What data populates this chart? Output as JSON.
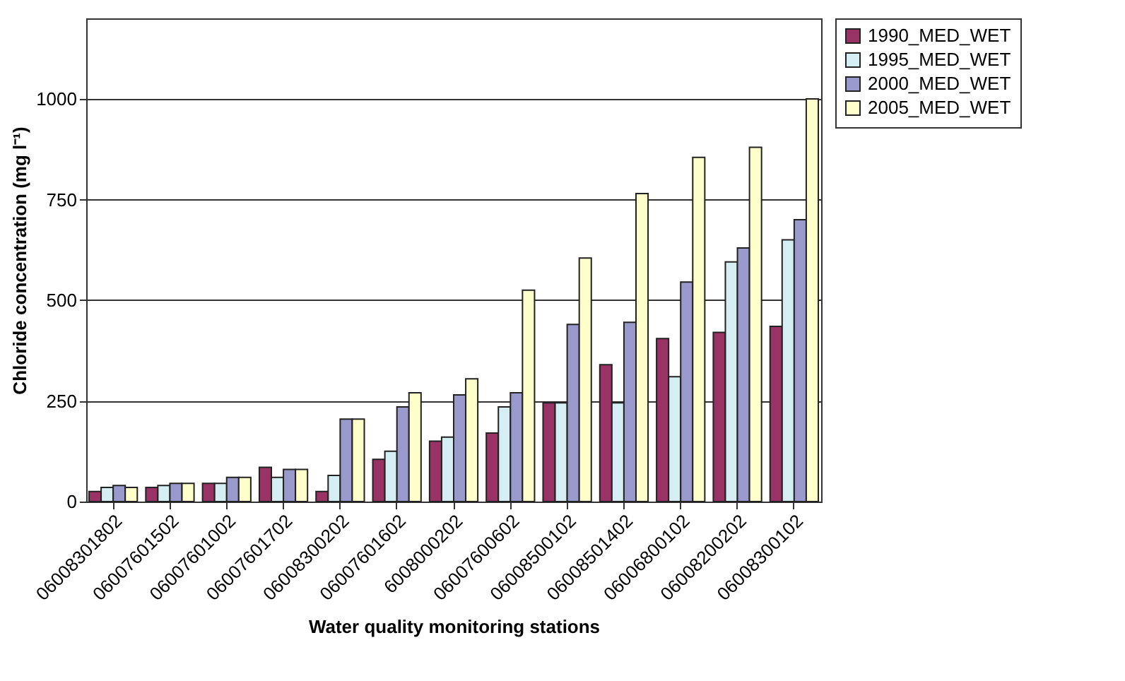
{
  "chart_data": {
    "type": "bar",
    "xlabel": "Water quality monitoring stations",
    "ylabel": "Chloride concentration (mg l⁻¹)",
    "categories": [
      "06008301802",
      "06007601502",
      "06007601002",
      "06007601702",
      "06008300202",
      "06007601602",
      "6008000202",
      "06007600602",
      "06008500102",
      "06008501402",
      "06006800102",
      "06008200202",
      "06008300102"
    ],
    "series": [
      {
        "name": "1990_MED_WET",
        "color": "#993366",
        "values": [
          25,
          35,
          45,
          85,
          25,
          105,
          150,
          170,
          245,
          340,
          405,
          420,
          435
        ]
      },
      {
        "name": "1995_MED_WET",
        "color": "#d4eef4",
        "values": [
          35,
          40,
          45,
          60,
          65,
          125,
          160,
          235,
          245,
          245,
          310,
          595,
          650
        ]
      },
      {
        "name": "2000_MED_WET",
        "color": "#9999cc",
        "values": [
          40,
          45,
          60,
          80,
          205,
          235,
          265,
          270,
          440,
          445,
          545,
          630,
          700
        ]
      },
      {
        "name": "2005_MED_WET",
        "color": "#ffffcc",
        "values": [
          35,
          45,
          60,
          80,
          205,
          270,
          305,
          525,
          605,
          765,
          855,
          880,
          1000
        ]
      }
    ],
    "ylim": [
      0,
      1200
    ],
    "yticks": [
      0,
      250,
      500,
      750,
      1000
    ],
    "grid": "y",
    "legend": "right"
  }
}
